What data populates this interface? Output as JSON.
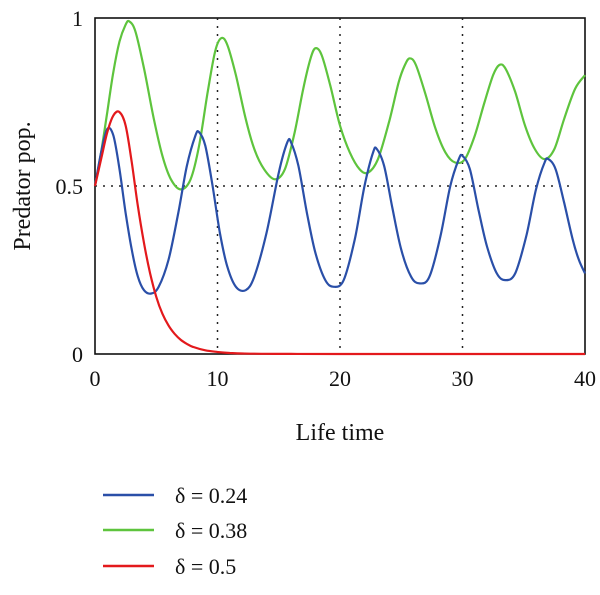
{
  "chart_data": {
    "type": "line",
    "xlabel": "Life time",
    "ylabel": "Predator pop.",
    "xlim": [
      0,
      40
    ],
    "ylim": [
      0,
      1
    ],
    "x_ticks": [
      0,
      10,
      20,
      30,
      40
    ],
    "x_tick_labels": [
      "0",
      "10",
      "20",
      "30",
      "40"
    ],
    "y_ticks": [
      0,
      0.5,
      1
    ],
    "y_tick_labels": [
      "0",
      "0.5",
      "1"
    ],
    "reference_lines": {
      "horizontal": [
        0.5
      ],
      "vertical": [
        10,
        20,
        30
      ]
    },
    "legend_position": "bottom",
    "series": [
      {
        "name": "δ = 0.24",
        "color": "#2a4fa8",
        "points": [
          [
            0,
            0.5
          ],
          [
            0.5,
            0.6
          ],
          [
            1,
            0.67
          ],
          [
            1.5,
            0.65
          ],
          [
            2,
            0.55
          ],
          [
            2.5,
            0.42
          ],
          [
            3,
            0.31
          ],
          [
            3.5,
            0.23
          ],
          [
            4,
            0.19
          ],
          [
            4.6,
            0.18
          ],
          [
            5.2,
            0.2
          ],
          [
            6,
            0.28
          ],
          [
            6.8,
            0.42
          ],
          [
            7.5,
            0.56
          ],
          [
            8.2,
            0.65
          ],
          [
            8.5,
            0.66
          ],
          [
            9,
            0.62
          ],
          [
            9.6,
            0.5
          ],
          [
            10.2,
            0.36
          ],
          [
            10.8,
            0.26
          ],
          [
            11.5,
            0.2
          ],
          [
            12.3,
            0.19
          ],
          [
            13,
            0.23
          ],
          [
            14,
            0.36
          ],
          [
            15,
            0.54
          ],
          [
            15.7,
            0.63
          ],
          [
            16,
            0.63
          ],
          [
            16.6,
            0.56
          ],
          [
            17.3,
            0.42
          ],
          [
            18,
            0.3
          ],
          [
            18.8,
            0.22
          ],
          [
            19.5,
            0.2
          ],
          [
            20.3,
            0.22
          ],
          [
            21.2,
            0.34
          ],
          [
            22,
            0.5
          ],
          [
            22.7,
            0.6
          ],
          [
            23,
            0.61
          ],
          [
            23.6,
            0.56
          ],
          [
            24.3,
            0.43
          ],
          [
            25,
            0.31
          ],
          [
            25.8,
            0.23
          ],
          [
            26.5,
            0.21
          ],
          [
            27.3,
            0.23
          ],
          [
            28.2,
            0.35
          ],
          [
            29,
            0.5
          ],
          [
            29.7,
            0.58
          ],
          [
            30,
            0.59
          ],
          [
            30.6,
            0.55
          ],
          [
            31.3,
            0.43
          ],
          [
            32,
            0.32
          ],
          [
            32.8,
            0.24
          ],
          [
            33.5,
            0.22
          ],
          [
            34.3,
            0.24
          ],
          [
            35.2,
            0.35
          ],
          [
            36,
            0.49
          ],
          [
            36.7,
            0.57
          ],
          [
            37,
            0.58
          ],
          [
            37.6,
            0.55
          ],
          [
            38.3,
            0.45
          ],
          [
            39,
            0.34
          ],
          [
            39.5,
            0.28
          ],
          [
            40,
            0.24
          ]
        ]
      },
      {
        "name": "δ = 0.38",
        "color": "#5ec43d",
        "points": [
          [
            0,
            0.5
          ],
          [
            0.5,
            0.6
          ],
          [
            1,
            0.72
          ],
          [
            1.5,
            0.84
          ],
          [
            2,
            0.93
          ],
          [
            2.5,
            0.98
          ],
          [
            2.8,
            0.99
          ],
          [
            3.3,
            0.96
          ],
          [
            4,
            0.85
          ],
          [
            4.8,
            0.7
          ],
          [
            5.5,
            0.59
          ],
          [
            6.2,
            0.52
          ],
          [
            7,
            0.49
          ],
          [
            7.8,
            0.52
          ],
          [
            8.5,
            0.62
          ],
          [
            9.2,
            0.78
          ],
          [
            9.8,
            0.9
          ],
          [
            10.3,
            0.94
          ],
          [
            10.8,
            0.92
          ],
          [
            11.5,
            0.83
          ],
          [
            12.3,
            0.7
          ],
          [
            13,
            0.61
          ],
          [
            13.8,
            0.55
          ],
          [
            14.7,
            0.52
          ],
          [
            15.5,
            0.55
          ],
          [
            16.3,
            0.66
          ],
          [
            17,
            0.79
          ],
          [
            17.6,
            0.88
          ],
          [
            18,
            0.91
          ],
          [
            18.5,
            0.89
          ],
          [
            19.2,
            0.8
          ],
          [
            20,
            0.68
          ],
          [
            20.8,
            0.6
          ],
          [
            21.6,
            0.55
          ],
          [
            22.3,
            0.54
          ],
          [
            23.1,
            0.58
          ],
          [
            24,
            0.69
          ],
          [
            24.8,
            0.81
          ],
          [
            25.3,
            0.86
          ],
          [
            25.7,
            0.88
          ],
          [
            26.2,
            0.86
          ],
          [
            27,
            0.77
          ],
          [
            27.8,
            0.67
          ],
          [
            28.6,
            0.6
          ],
          [
            29.4,
            0.57
          ],
          [
            30.2,
            0.58
          ],
          [
            31,
            0.65
          ],
          [
            31.8,
            0.75
          ],
          [
            32.5,
            0.83
          ],
          [
            33,
            0.86
          ],
          [
            33.5,
            0.85
          ],
          [
            34.3,
            0.78
          ],
          [
            35.1,
            0.68
          ],
          [
            35.9,
            0.61
          ],
          [
            36.7,
            0.58
          ],
          [
            37.5,
            0.61
          ],
          [
            38.3,
            0.7
          ],
          [
            39.2,
            0.79
          ],
          [
            40,
            0.83
          ]
        ]
      },
      {
        "name": "δ = 0.5",
        "color": "#e3191c",
        "points": [
          [
            0,
            0.5
          ],
          [
            0.5,
            0.58
          ],
          [
            1,
            0.66
          ],
          [
            1.5,
            0.71
          ],
          [
            2,
            0.72
          ],
          [
            2.5,
            0.68
          ],
          [
            3,
            0.57
          ],
          [
            3.5,
            0.44
          ],
          [
            4,
            0.33
          ],
          [
            4.5,
            0.24
          ],
          [
            5,
            0.17
          ],
          [
            5.5,
            0.12
          ],
          [
            6,
            0.085
          ],
          [
            6.5,
            0.06
          ],
          [
            7,
            0.042
          ],
          [
            7.5,
            0.03
          ],
          [
            8,
            0.021
          ],
          [
            9,
            0.011
          ],
          [
            10,
            0.006
          ],
          [
            11,
            0.003
          ],
          [
            12,
            0.0015
          ],
          [
            14,
            0.0005
          ],
          [
            16,
            0.0002
          ],
          [
            20,
            0
          ],
          [
            30,
            0
          ],
          [
            40,
            0
          ]
        ]
      }
    ]
  }
}
